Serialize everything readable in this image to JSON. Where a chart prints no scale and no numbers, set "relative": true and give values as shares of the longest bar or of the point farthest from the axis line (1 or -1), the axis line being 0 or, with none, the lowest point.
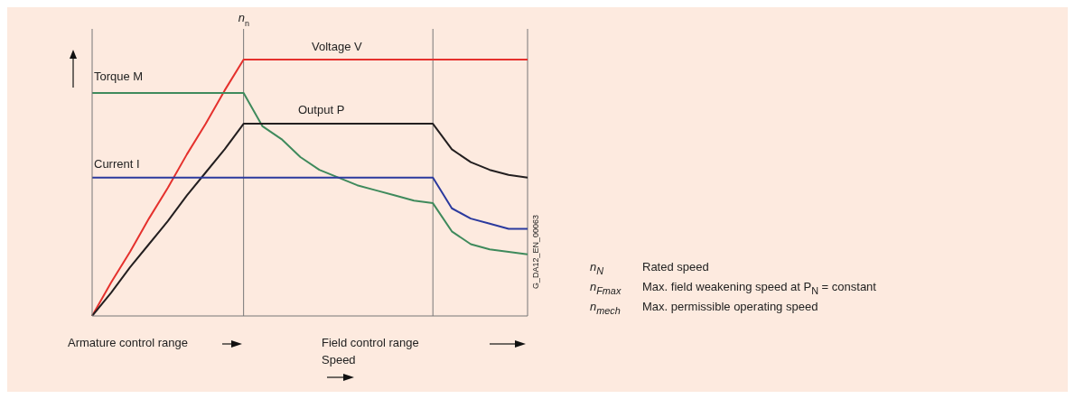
{
  "chart_data": {
    "type": "line",
    "relative": true,
    "xlabel": "Speed",
    "categories": [
      null,
      null,
      null,
      null,
      null,
      null,
      null,
      null,
      null,
      null,
      null,
      null,
      null,
      null,
      null,
      null,
      null,
      null,
      null,
      null,
      null,
      null,
      null,
      null
    ],
    "series": [
      {
        "name": "Voltage V",
        "color": "#e5312d",
        "values": [
          0,
          0.13,
          0.25,
          0.38,
          0.5,
          0.63,
          0.75,
          0.88,
          1,
          1,
          1,
          1,
          1,
          1,
          1,
          1,
          1,
          1,
          1,
          1,
          1,
          1,
          1,
          1
        ]
      },
      {
        "name": "Torque M",
        "color": "#3f8a5c",
        "values": [
          0.87,
          0.87,
          0.87,
          0.87,
          0.87,
          0.87,
          0.87,
          0.87,
          0.87,
          0.74,
          0.69,
          0.62,
          0.57,
          0.54,
          0.51,
          0.49,
          0.47,
          0.45,
          0.44,
          0.33,
          0.28,
          0.26,
          0.25,
          0.24
        ]
      },
      {
        "name": "Output P",
        "color": "#231f20",
        "values": [
          0,
          0.09,
          0.19,
          0.28,
          0.37,
          0.47,
          0.56,
          0.65,
          0.75,
          0.75,
          0.75,
          0.75,
          0.75,
          0.75,
          0.75,
          0.75,
          0.75,
          0.75,
          0.75,
          0.65,
          0.6,
          0.57,
          0.55,
          0.54
        ]
      },
      {
        "name": "Current I",
        "color": "#2b3a9e",
        "values": [
          0.54,
          0.54,
          0.54,
          0.54,
          0.54,
          0.54,
          0.54,
          0.54,
          0.54,
          0.54,
          0.54,
          0.54,
          0.54,
          0.54,
          0.54,
          0.54,
          0.54,
          0.54,
          0.54,
          0.42,
          0.38,
          0.36,
          0.34,
          0.34
        ]
      }
    ],
    "annotations": [
      "Armature control range",
      "Field control range",
      "G_DA12_EN_00063",
      "n$_{N}$",
      "Rated speed",
      "n$_{Fmax}$",
      "Max. field weakening speed at P$_{N}$ = constant",
      "n$_{mech}$",
      "Max. permissible operating speed",
      "n$_{n}$"
    ],
    "legend": false,
    "grid": false,
    "marker": "none",
    "line_style": "solid"
  }
}
